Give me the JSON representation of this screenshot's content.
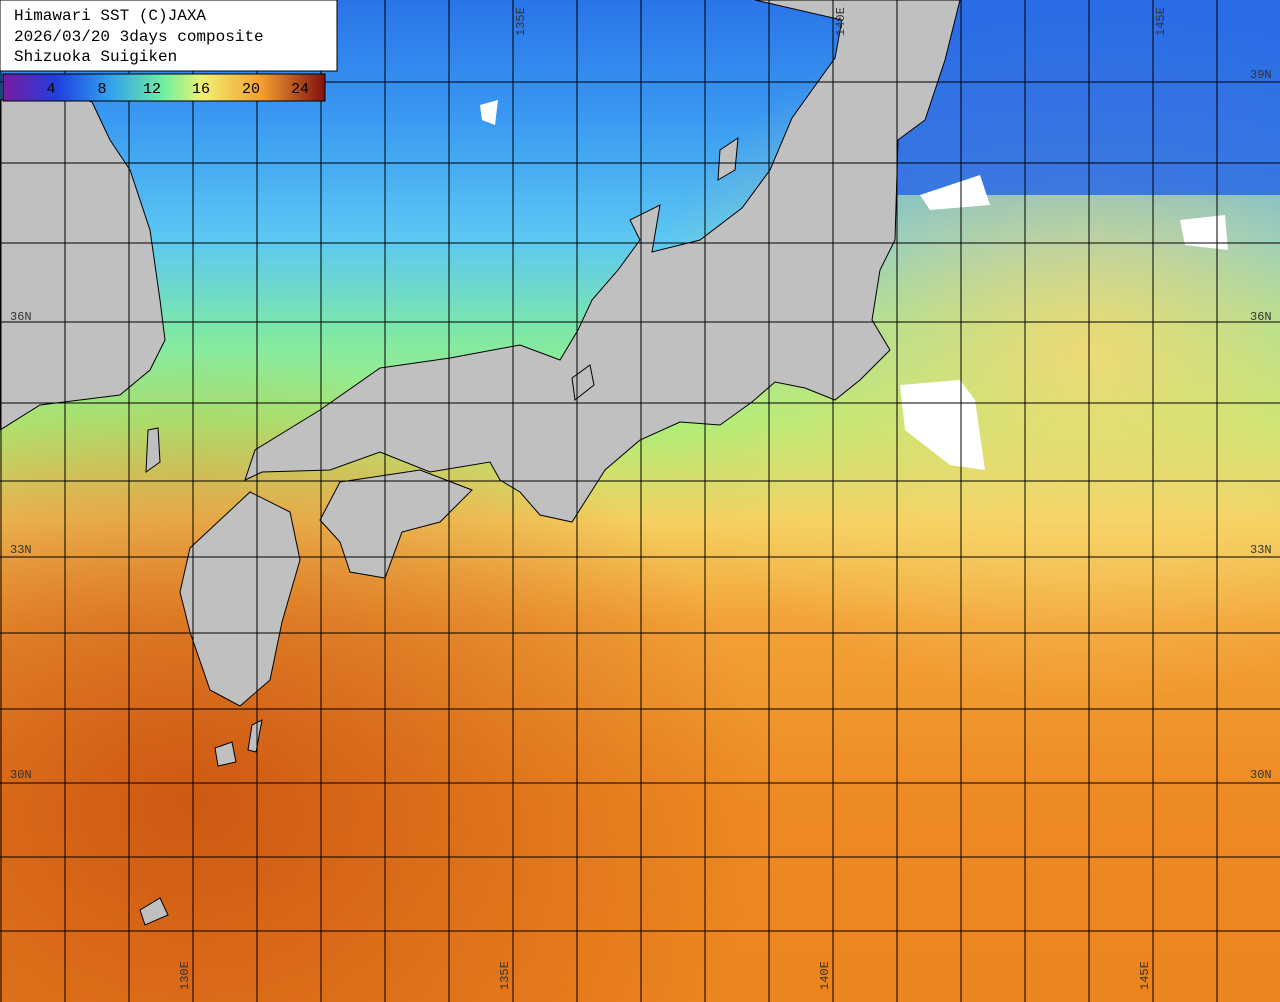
{
  "header": {
    "lines": [
      "Himawari SST (C)JAXA",
      "2026/03/20 3days composite",
      "Shizuoka Suigiken"
    ]
  },
  "colorbar": {
    "labels": [
      "4",
      "8",
      "12",
      "16",
      "20",
      "24"
    ]
  },
  "grid": {
    "lon_labels": [
      "130E",
      "135E",
      "140E",
      "145E"
    ],
    "lat_labels": [
      "39N",
      "36N",
      "33N",
      "30N"
    ]
  }
}
